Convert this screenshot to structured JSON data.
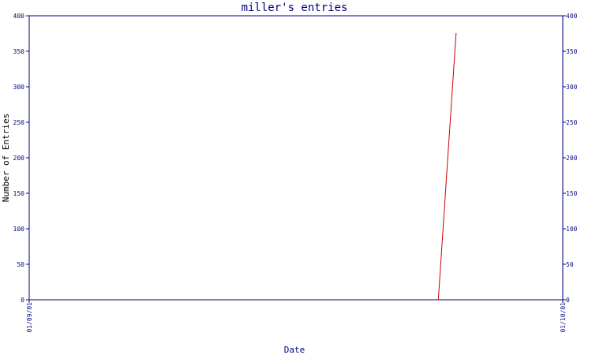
{
  "chart_data": {
    "type": "line",
    "title": "miller's entries",
    "xlabel": "Date",
    "ylabel": "Number of Entries",
    "x_tick_labels": [
      "01/09/01",
      "01/10/01"
    ],
    "ylim": [
      0,
      400
    ],
    "y_ticks": [
      0,
      50,
      100,
      150,
      200,
      250,
      300,
      350,
      400
    ],
    "series": [
      {
        "color": "#cc0000",
        "points": [
          {
            "x": "2001-09-24",
            "y": 0
          },
          {
            "x": "2001-09-25",
            "y": 375
          }
        ]
      }
    ],
    "x_range": [
      "2001-09-01",
      "2001-10-01"
    ],
    "colors": {
      "axis": "#000080",
      "title": "#000080",
      "tick_label": "#000080",
      "series": "#cc0000"
    },
    "grid": false,
    "legend": "none"
  }
}
